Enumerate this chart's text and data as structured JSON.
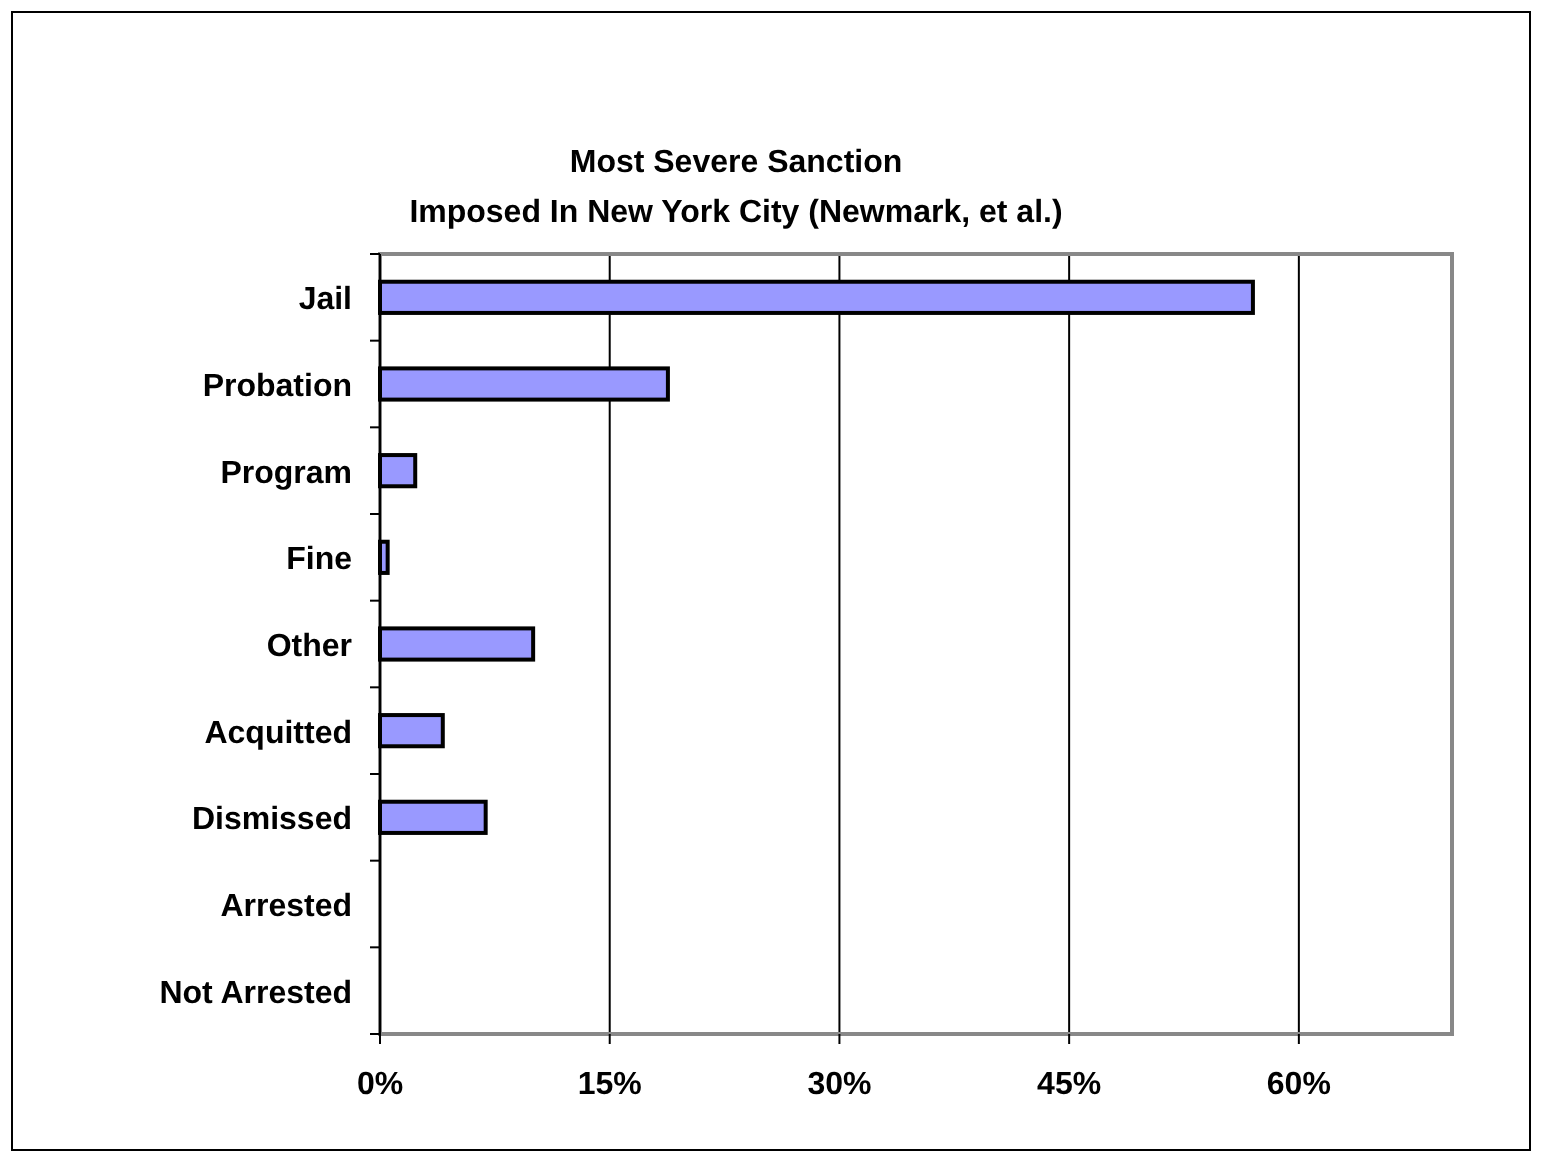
{
  "chart_data": {
    "type": "bar",
    "orientation": "horizontal",
    "title": "Most Severe Sanction\nImposed In New York City (Newmark, et al.)",
    "categories": [
      "Jail",
      "Probation",
      "Program",
      "Fine",
      "Other",
      "Acquitted",
      "Dismissed",
      "Arrested",
      "Not Arrested"
    ],
    "values": [
      57.0,
      18.8,
      2.3,
      0.5,
      10.0,
      4.1,
      6.9,
      0,
      0
    ],
    "color": "#9999ff",
    "xlim": [
      0,
      70
    ],
    "xticks": [
      {
        "value": 0,
        "label": "0%"
      },
      {
        "value": 15,
        "label": "15%"
      },
      {
        "value": 30,
        "label": "30%"
      },
      {
        "value": 45,
        "label": "45%"
      },
      {
        "value": 60,
        "label": "60%"
      }
    ],
    "grid": "x"
  }
}
